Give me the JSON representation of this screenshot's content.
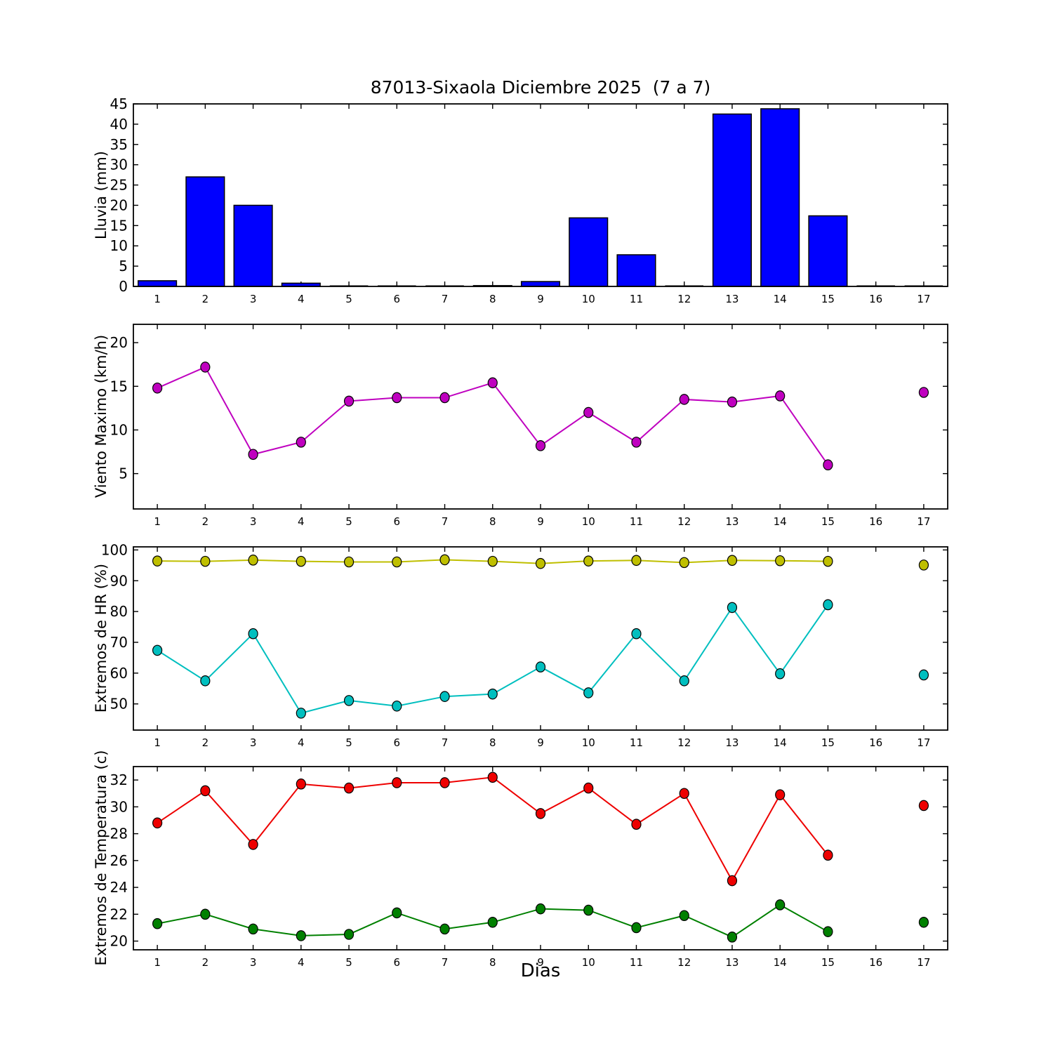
{
  "title": "87013-Sixaola Diciembre 2025  (7 a 7)",
  "xlabel": "Dias",
  "categories": [
    1,
    2,
    3,
    4,
    5,
    6,
    7,
    8,
    9,
    10,
    11,
    12,
    13,
    14,
    15,
    16,
    17
  ],
  "chart_data": [
    {
      "type": "bar",
      "title": "Lluvia diaria",
      "ylabel": "Lluvia (mm)",
      "categories": [
        1,
        2,
        3,
        4,
        5,
        6,
        7,
        8,
        9,
        10,
        11,
        12,
        13,
        14,
        15,
        16,
        17
      ],
      "ylim": [
        0,
        45
      ],
      "yticks": [
        0,
        5,
        10,
        15,
        20,
        25,
        30,
        35,
        40,
        45
      ],
      "bar_width": 0.8,
      "grid": false,
      "series": [
        {
          "name": "lluvia-mm",
          "color": "#0000ff",
          "edge_color": "#000000",
          "values": [
            1.4,
            27.0,
            20.0,
            0.8,
            0,
            0,
            0,
            0.2,
            1.2,
            16.9,
            7.8,
            0,
            42.5,
            43.8,
            17.4,
            0,
            0
          ]
        }
      ]
    },
    {
      "type": "line",
      "title": "Viento maximo diario",
      "ylabel": "Viento Maximo (km/h)",
      "categories": [
        1,
        2,
        3,
        4,
        5,
        6,
        7,
        8,
        9,
        10,
        11,
        12,
        13,
        14,
        15,
        16,
        17
      ],
      "ylim": [
        0.95,
        22.1
      ],
      "yticks": [
        5,
        10,
        15,
        20
      ],
      "grid": false,
      "series": [
        {
          "name": "viento-maximo",
          "color": "#bf00bf",
          "edge_color": "#000000",
          "values": [
            14.8,
            17.2,
            7.2,
            8.6,
            13.3,
            13.7,
            13.7,
            15.4,
            8.2,
            12.0,
            8.6,
            13.5,
            13.2,
            13.9,
            6.0,
            null,
            14.3
          ]
        }
      ]
    },
    {
      "type": "line",
      "title": "Extremos de humedad relativa",
      "ylabel": "Extremos de HR (%)",
      "categories": [
        1,
        2,
        3,
        4,
        5,
        6,
        7,
        8,
        9,
        10,
        11,
        12,
        13,
        14,
        15,
        16,
        17
      ],
      "ylim": [
        41.5,
        101
      ],
      "yticks": [
        50,
        60,
        70,
        80,
        90,
        100
      ],
      "grid": false,
      "series": [
        {
          "name": "hr-maxima",
          "color": "#bfbf00",
          "edge_color": "#000000",
          "values": [
            96.4,
            96.3,
            96.7,
            96.3,
            96.1,
            96.1,
            96.8,
            96.3,
            95.6,
            96.4,
            96.6,
            95.9,
            96.6,
            96.5,
            96.3,
            null,
            95.1
          ]
        },
        {
          "name": "hr-minima",
          "color": "#00bfbf",
          "edge_color": "#000000",
          "values": [
            67.4,
            57.5,
            72.8,
            47.0,
            51.1,
            49.3,
            52.4,
            53.2,
            62.0,
            53.6,
            72.8,
            57.5,
            81.3,
            59.8,
            82.2,
            null,
            59.4
          ]
        }
      ]
    },
    {
      "type": "line",
      "title": "Extremos de temperatura",
      "ylabel": "Extremos de Temperatura (c)",
      "categories": [
        1,
        2,
        3,
        4,
        5,
        6,
        7,
        8,
        9,
        10,
        11,
        12,
        13,
        14,
        15,
        16,
        17
      ],
      "ylim": [
        19.35,
        33.0
      ],
      "yticks": [
        20,
        22,
        24,
        26,
        28,
        30,
        32
      ],
      "grid": false,
      "series": [
        {
          "name": "temperatura-maxima",
          "color": "#ee0000",
          "edge_color": "#000000",
          "values": [
            28.8,
            31.2,
            27.2,
            31.7,
            31.4,
            31.8,
            31.8,
            32.2,
            29.5,
            31.4,
            28.7,
            31.0,
            24.5,
            30.9,
            26.4,
            null,
            30.1
          ]
        },
        {
          "name": "temperatura-minima",
          "color": "#008000",
          "edge_color": "#000000",
          "values": [
            21.3,
            22.0,
            20.9,
            20.4,
            20.5,
            22.1,
            20.9,
            21.4,
            22.4,
            22.3,
            21.0,
            21.9,
            20.3,
            22.7,
            20.7,
            null,
            21.4
          ]
        }
      ]
    }
  ]
}
